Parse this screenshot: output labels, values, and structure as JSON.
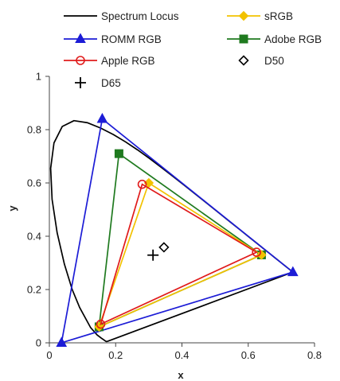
{
  "chart_data": {
    "type": "scatter",
    "title": "",
    "xlabel": "x",
    "ylabel": "y",
    "xlim": [
      0,
      0.8
    ],
    "ylim": [
      0,
      1
    ],
    "xticks": [
      "0",
      "0.2",
      "0.4",
      "0.6",
      "0.8"
    ],
    "yticks": [
      "0",
      "0.2",
      "0.4",
      "0.6",
      "0.8",
      "1"
    ],
    "grid": false,
    "legend_position": "top",
    "series": [
      {
        "name": "Spectrum Locus",
        "kind": "curve",
        "color": "#000000",
        "marker": "none",
        "x": [
          0.1741,
          0.1721,
          0.1689,
          0.1644,
          0.1566,
          0.144,
          0.1241,
          0.0913,
          0.0687,
          0.0454,
          0.0235,
          0.0082,
          0.0039,
          0.0139,
          0.0389,
          0.0743,
          0.1142,
          0.1547,
          0.1929,
          0.2296,
          0.2658,
          0.3016,
          0.3373,
          0.3731,
          0.4087,
          0.4441,
          0.4788,
          0.5125,
          0.5448,
          0.5752,
          0.6029,
          0.627,
          0.6482,
          0.6658,
          0.6801,
          0.6915,
          0.7006,
          0.7079,
          0.714,
          0.719,
          0.723,
          0.726,
          0.7283,
          0.73,
          0.7311,
          0.732,
          0.7327,
          0.7334,
          0.734,
          0.7344,
          0.7347,
          0.1741
        ],
        "y": [
          0.005,
          0.0048,
          0.0069,
          0.0109,
          0.0177,
          0.0297,
          0.0578,
          0.1327,
          0.2007,
          0.295,
          0.4127,
          0.5384,
          0.6548,
          0.7502,
          0.812,
          0.8338,
          0.8262,
          0.8059,
          0.7816,
          0.7543,
          0.7243,
          0.6923,
          0.6589,
          0.6245,
          0.5896,
          0.5547,
          0.5202,
          0.4866,
          0.4544,
          0.4242,
          0.3965,
          0.3725,
          0.3514,
          0.334,
          0.3197,
          0.3083,
          0.2993,
          0.292,
          0.2859,
          0.2809,
          0.277,
          0.274,
          0.2717,
          0.27,
          0.2689,
          0.268,
          0.2673,
          0.2666,
          0.266,
          0.2656,
          0.2653,
          0.005
        ]
      },
      {
        "name": "sRGB",
        "kind": "triangle",
        "color": "#f2c200",
        "marker": "diamond",
        "x": [
          0.64,
          0.3,
          0.15
        ],
        "y": [
          0.33,
          0.6,
          0.06
        ]
      },
      {
        "name": "ROMM RGB",
        "kind": "triangle",
        "color": "#1c1cd6",
        "marker": "triangle",
        "x": [
          0.7347,
          0.1596,
          0.0366
        ],
        "y": [
          0.2653,
          0.8404,
          0.0001
        ]
      },
      {
        "name": "Adobe RGB",
        "kind": "triangle",
        "color": "#1f7a1f",
        "marker": "square",
        "x": [
          0.64,
          0.21,
          0.15
        ],
        "y": [
          0.33,
          0.71,
          0.06
        ]
      },
      {
        "name": "Apple RGB",
        "kind": "triangle",
        "color": "#e01b1b",
        "marker": "circle-open",
        "x": [
          0.625,
          0.28,
          0.155
        ],
        "y": [
          0.34,
          0.595,
          0.07
        ]
      },
      {
        "name": "D50",
        "kind": "point",
        "color": "#000000",
        "marker": "diamond-open",
        "x": [
          0.3457
        ],
        "y": [
          0.3585
        ]
      },
      {
        "name": "D65",
        "kind": "point",
        "color": "#000000",
        "marker": "plus",
        "x": [
          0.3127
        ],
        "y": [
          0.329
        ]
      }
    ]
  }
}
